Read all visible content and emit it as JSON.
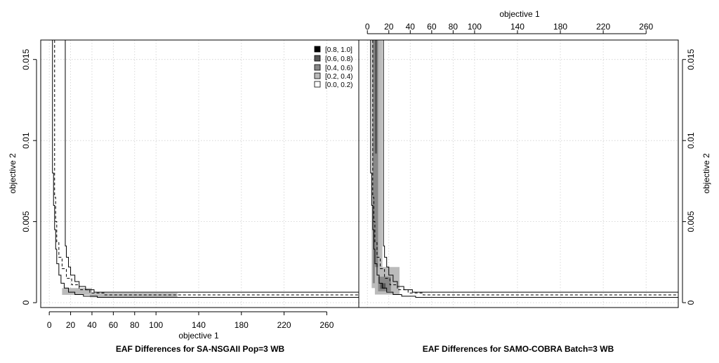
{
  "chart_data": [
    {
      "type": "line",
      "title": "EAF Differences for SA-NSGAII Pop=3 WB",
      "xlabel": "objective 1",
      "ylabel": "objective 2",
      "xlim": [
        -8,
        290
      ],
      "ylim": [
        -0.0003,
        0.0162
      ],
      "x_ticks": [
        "0",
        "20",
        "40",
        "60",
        "80",
        "100",
        "140",
        "180",
        "220",
        "260"
      ],
      "x_tick_values": [
        0,
        20,
        40,
        60,
        80,
        100,
        140,
        180,
        220,
        260
      ],
      "y_ticks": [
        "0",
        "0.005",
        "0.01",
        "0.015"
      ],
      "y_tick_values": [
        0,
        0.005,
        0.01,
        0.015
      ],
      "grid": true,
      "legend": {
        "placement": "top-right",
        "entries": [
          "[0.8, 1.0]",
          "[0.6, 0.8)",
          "[0.4, 0.6)",
          "[0.2, 0.4)",
          "[0.0, 0.2)"
        ],
        "colors": [
          "#000000",
          "#555555",
          "#888888",
          "#bbbbbb",
          "#ffffff"
        ]
      },
      "series": [
        {
          "style": "solid",
          "x": [
            2,
            3,
            3,
            4,
            5,
            6,
            7,
            9,
            11,
            14,
            18,
            24,
            32,
            45,
            290
          ],
          "y": [
            0.0162,
            0.0162,
            0.008,
            0.006,
            0.0045,
            0.0033,
            0.0024,
            0.0017,
            0.0012,
            0.0009,
            0.00065,
            0.0005,
            0.0004,
            0.00033,
            0.00033
          ]
        },
        {
          "style": "dashed",
          "x": [
            5,
            5,
            6,
            7,
            9,
            12,
            16,
            21,
            28,
            38,
            52,
            290
          ],
          "y": [
            0.0162,
            0.0065,
            0.005,
            0.0037,
            0.0028,
            0.0021,
            0.0015,
            0.0011,
            0.0008,
            0.0006,
            0.00048,
            0.00048
          ]
        },
        {
          "style": "solid",
          "x": [
            15,
            15,
            16,
            18,
            20,
            24,
            28,
            34,
            42,
            290
          ],
          "y": [
            0.0162,
            0.0035,
            0.0028,
            0.0022,
            0.0017,
            0.0013,
            0.001,
            0.0008,
            0.00065,
            0.00065
          ]
        }
      ],
      "regions": [
        {
          "level": "[0.2, 0.4)",
          "x": [
            38,
            120
          ],
          "y": [
            0.00033,
            0.0006
          ]
        },
        {
          "level": "[0.2, 0.4)",
          "x": [
            12,
            40
          ],
          "y": [
            0.00048,
            0.0009
          ]
        }
      ]
    },
    {
      "type": "line",
      "title": "EAF Differences for SAMO-COBRA Batch=3 WB",
      "xlabel": "objective 1",
      "ylabel": "objective 2",
      "xlim": [
        -8,
        290
      ],
      "ylim": [
        -0.0003,
        0.0162
      ],
      "x_ticks": [
        "0",
        "20",
        "40",
        "60",
        "80",
        "100",
        "140",
        "180",
        "220",
        "260"
      ],
      "x_tick_values": [
        0,
        20,
        40,
        60,
        80,
        100,
        140,
        180,
        220,
        260
      ],
      "y_ticks": [
        "0",
        "0.005",
        "0.01",
        "0.015"
      ],
      "y_tick_values": [
        0,
        0.005,
        0.01,
        0.015
      ],
      "grid": true,
      "series": [
        {
          "style": "solid",
          "x": [
            2,
            3,
            3,
            4,
            5,
            6,
            7,
            9,
            11,
            14,
            18,
            24,
            32,
            45,
            290
          ],
          "y": [
            0.0162,
            0.0162,
            0.008,
            0.006,
            0.0045,
            0.0033,
            0.0024,
            0.0017,
            0.0012,
            0.0009,
            0.00065,
            0.0005,
            0.0004,
            0.00033,
            0.00033
          ]
        },
        {
          "style": "dashed",
          "x": [
            5,
            5,
            6,
            7,
            9,
            12,
            16,
            21,
            28,
            38,
            52,
            290
          ],
          "y": [
            0.0162,
            0.0065,
            0.005,
            0.0037,
            0.0028,
            0.0021,
            0.0015,
            0.0011,
            0.0008,
            0.0006,
            0.00048,
            0.00048
          ]
        },
        {
          "style": "solid",
          "x": [
            15,
            15,
            16,
            18,
            20,
            24,
            28,
            34,
            42,
            290
          ],
          "y": [
            0.0162,
            0.0035,
            0.0028,
            0.0022,
            0.0017,
            0.0013,
            0.001,
            0.0008,
            0.00065,
            0.00065
          ]
        }
      ],
      "regions": [
        {
          "level": "[0.2, 0.4)",
          "x": [
            4,
            14
          ],
          "y": [
            0.0009,
            0.0162
          ]
        },
        {
          "level": "[0.4, 0.6)",
          "x": [
            5,
            10
          ],
          "y": [
            0.0012,
            0.0162
          ]
        },
        {
          "level": "[0.6, 0.8)",
          "x": [
            7,
            9
          ],
          "y": [
            0.0092,
            0.0162
          ]
        },
        {
          "level": "[0.2, 0.4)",
          "x": [
            7,
            30
          ],
          "y": [
            0.0005,
            0.0022
          ]
        },
        {
          "level": "[0.4, 0.6)",
          "x": [
            10,
            22
          ],
          "y": [
            0.0007,
            0.0016
          ]
        },
        {
          "level": "[0.6, 0.8)",
          "x": [
            12,
            17
          ],
          "y": [
            0.00085,
            0.0012
          ]
        }
      ]
    }
  ]
}
